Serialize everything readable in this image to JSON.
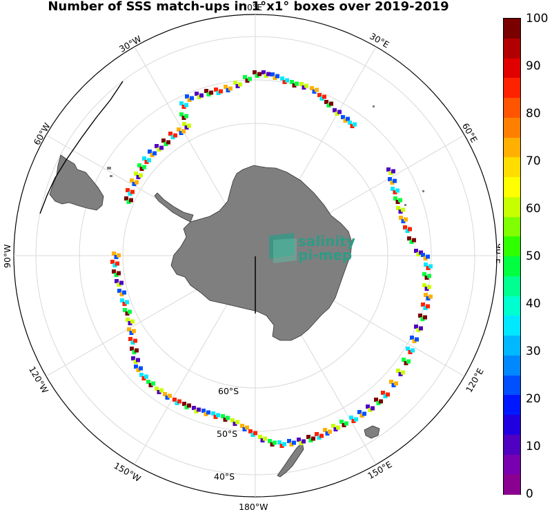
{
  "title": "Number of SSS match-ups in 1°x1° boxes over 2019-2019",
  "colorbar": {
    "ticks": [
      "100",
      "90",
      "80",
      "70",
      "60",
      "50",
      "40",
      "30",
      "20",
      "10",
      "0"
    ],
    "min": 0,
    "max": 100,
    "colors": [
      "#7a0000",
      "#b20000",
      "#e00000",
      "#ff2200",
      "#ff5500",
      "#ff8000",
      "#ffb000",
      "#ffdd00",
      "#ffff00",
      "#c8ff00",
      "#80ff00",
      "#30ff00",
      "#00ff40",
      "#00ff90",
      "#00ffd0",
      "#00e8ff",
      "#00b8ff",
      "#0088ff",
      "#0050ff",
      "#0018ff",
      "#2000e0",
      "#5000c0",
      "#7800b0",
      "#8a0090"
    ]
  },
  "lon_labels": {
    "lon_0": "0°E",
    "lon_30e": "30°E",
    "lon_60e": "60°E",
    "lon_90e": "90°E",
    "lon_120e": "120°E",
    "lon_150e": "150°E",
    "lon_180": "180°W",
    "lon_150w": "150°W",
    "lon_120w": "120°W",
    "lon_90w": "90°W",
    "lon_60w": "60°W",
    "lon_30w": "30°W"
  },
  "lat_labels": {
    "lat_60": "60°S",
    "lat_50": "50°S",
    "lat_40": "40°S"
  },
  "watermark": {
    "line1": "salinity",
    "line2": "pi-mep"
  }
}
